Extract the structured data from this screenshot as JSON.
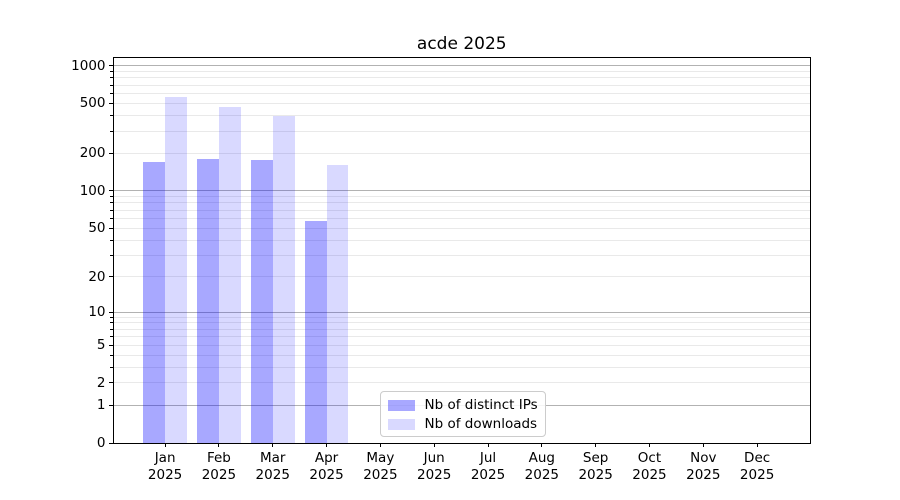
{
  "figure_title": "acde 2025",
  "chart_data": {
    "type": "bar",
    "title": "acde 2025",
    "x_months": [
      "Jan",
      "Feb",
      "Mar",
      "Apr",
      "May",
      "Jun",
      "Jul",
      "Aug",
      "Sep",
      "Oct",
      "Nov",
      "Dec"
    ],
    "x_year": "2025",
    "series": [
      {
        "name": "Nb of distinct IPs",
        "color": "#0000ff57",
        "values": [
          170,
          180,
          177,
          57,
          null,
          null,
          null,
          null,
          null,
          null,
          null,
          null
        ]
      },
      {
        "name": "Nb of downloads",
        "color": "#0000ff26",
        "values": [
          565,
          468,
          400,
          160,
          null,
          null,
          null,
          null,
          null,
          null,
          null,
          null
        ]
      }
    ],
    "yscale": "log1p",
    "ylim": [
      0,
      1150
    ],
    "y_tick_labels": [
      0,
      1,
      2,
      5,
      10,
      20,
      50,
      100,
      200,
      500,
      1000
    ],
    "grid": {
      "which": "both",
      "major_color": "#b2b2b2",
      "minor_color": "#e9e9e9"
    },
    "legend_position": "lower center"
  }
}
